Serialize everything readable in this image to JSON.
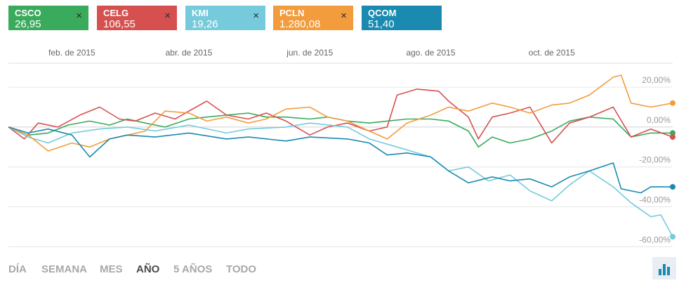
{
  "tickers": [
    {
      "symbol": "CSCO",
      "price": "26,95",
      "color": "#3aaa5c",
      "closable": true
    },
    {
      "symbol": "CELG",
      "price": "106,55",
      "color": "#d65050",
      "closable": true
    },
    {
      "symbol": "KMI",
      "price": "19,26",
      "color": "#75cbdc",
      "closable": true
    },
    {
      "symbol": "PCLN",
      "price": "1.280,08",
      "color": "#f39c3d",
      "closable": true
    },
    {
      "symbol": "QCOM",
      "price": "51,40",
      "color": "#1a8ab0",
      "closable": false
    }
  ],
  "time_tabs": [
    "DÍA",
    "SEMANA",
    "MES",
    "AÑO",
    "5 AÑOS",
    "TODO"
  ],
  "active_tab": "AÑO",
  "close_glyph": "×",
  "chart_toggle_icon": "bar-chart-icon",
  "chart_data": {
    "type": "line",
    "x_ticks": [
      "feb. de 2015",
      "abr. de 2015",
      "jun. de 2015",
      "ago. de 2015",
      "oct. de 2015"
    ],
    "y_ticks": [
      "20,00%",
      "0,00%",
      "-20,00%",
      "-40,00%",
      "-60,00%"
    ],
    "ylim": [
      -62,
      32
    ],
    "x_range": [
      "2014-12-31",
      "2015-12-01"
    ],
    "series": [
      {
        "name": "CSCO",
        "color": "#3aaa5c",
        "points": [
          [
            "2014-12-31",
            0
          ],
          [
            "2015-01-10",
            -4
          ],
          [
            "2015-01-20",
            -3
          ],
          [
            "2015-01-30",
            1
          ],
          [
            "2015-02-10",
            3
          ],
          [
            "2015-02-20",
            1
          ],
          [
            "2015-03-01",
            4
          ],
          [
            "2015-03-10",
            2
          ],
          [
            "2015-03-20",
            0
          ],
          [
            "2015-04-01",
            4
          ],
          [
            "2015-04-10",
            5
          ],
          [
            "2015-04-20",
            6
          ],
          [
            "2015-05-01",
            7
          ],
          [
            "2015-05-10",
            5
          ],
          [
            "2015-05-20",
            5
          ],
          [
            "2015-06-01",
            4
          ],
          [
            "2015-06-10",
            5
          ],
          [
            "2015-06-20",
            3
          ],
          [
            "2015-07-01",
            2
          ],
          [
            "2015-07-10",
            3
          ],
          [
            "2015-07-20",
            4
          ],
          [
            "2015-08-01",
            4
          ],
          [
            "2015-08-10",
            3
          ],
          [
            "2015-08-20",
            -2
          ],
          [
            "2015-08-25",
            -10
          ],
          [
            "2015-09-01",
            -5
          ],
          [
            "2015-09-10",
            -8
          ],
          [
            "2015-09-20",
            -6
          ],
          [
            "2015-10-01",
            -2
          ],
          [
            "2015-10-10",
            3
          ],
          [
            "2015-10-20",
            5
          ],
          [
            "2015-11-01",
            4
          ],
          [
            "2015-11-10",
            -5
          ],
          [
            "2015-11-20",
            -3
          ],
          [
            "2015-12-01",
            -3
          ]
        ]
      },
      {
        "name": "CELG",
        "color": "#d65050",
        "points": [
          [
            "2014-12-31",
            0
          ],
          [
            "2015-01-08",
            -6
          ],
          [
            "2015-01-15",
            2
          ],
          [
            "2015-01-25",
            0
          ],
          [
            "2015-02-05",
            6
          ],
          [
            "2015-02-15",
            10
          ],
          [
            "2015-02-25",
            4
          ],
          [
            "2015-03-05",
            3
          ],
          [
            "2015-03-15",
            7
          ],
          [
            "2015-03-25",
            4
          ],
          [
            "2015-04-01",
            8
          ],
          [
            "2015-04-10",
            13
          ],
          [
            "2015-04-20",
            6
          ],
          [
            "2015-05-01",
            4
          ],
          [
            "2015-05-10",
            7
          ],
          [
            "2015-05-20",
            3
          ],
          [
            "2015-06-01",
            -4
          ],
          [
            "2015-06-10",
            0
          ],
          [
            "2015-06-20",
            2
          ],
          [
            "2015-07-01",
            -2
          ],
          [
            "2015-07-10",
            0
          ],
          [
            "2015-07-15",
            16
          ],
          [
            "2015-07-25",
            19
          ],
          [
            "2015-08-05",
            18
          ],
          [
            "2015-08-10",
            13
          ],
          [
            "2015-08-20",
            5
          ],
          [
            "2015-08-25",
            -6
          ],
          [
            "2015-09-01",
            5
          ],
          [
            "2015-09-10",
            7
          ],
          [
            "2015-09-20",
            10
          ],
          [
            "2015-10-01",
            -8
          ],
          [
            "2015-10-10",
            2
          ],
          [
            "2015-10-20",
            5
          ],
          [
            "2015-11-01",
            10
          ],
          [
            "2015-11-10",
            -5
          ],
          [
            "2015-11-20",
            -1
          ],
          [
            "2015-12-01",
            -5
          ]
        ]
      },
      {
        "name": "KMI",
        "color": "#75cbdc",
        "points": [
          [
            "2014-12-31",
            0
          ],
          [
            "2015-01-10",
            -5
          ],
          [
            "2015-01-20",
            -8
          ],
          [
            "2015-02-01",
            -3
          ],
          [
            "2015-02-15",
            -1
          ],
          [
            "2015-03-01",
            0
          ],
          [
            "2015-03-15",
            -2
          ],
          [
            "2015-04-01",
            1
          ],
          [
            "2015-04-20",
            -3
          ],
          [
            "2015-05-01",
            -1
          ],
          [
            "2015-05-20",
            0
          ],
          [
            "2015-06-01",
            2
          ],
          [
            "2015-06-20",
            0
          ],
          [
            "2015-07-01",
            -6
          ],
          [
            "2015-07-15",
            -10
          ],
          [
            "2015-08-01",
            -15
          ],
          [
            "2015-08-10",
            -22
          ],
          [
            "2015-08-20",
            -20
          ],
          [
            "2015-08-30",
            -27
          ],
          [
            "2015-09-10",
            -24
          ],
          [
            "2015-09-20",
            -32
          ],
          [
            "2015-10-01",
            -37
          ],
          [
            "2015-10-10",
            -29
          ],
          [
            "2015-10-20",
            -22
          ],
          [
            "2015-11-01",
            -30
          ],
          [
            "2015-11-10",
            -38
          ],
          [
            "2015-11-20",
            -45
          ],
          [
            "2015-11-25",
            -44
          ],
          [
            "2015-12-01",
            -55
          ]
        ]
      },
      {
        "name": "PCLN",
        "color": "#f39c3d",
        "points": [
          [
            "2014-12-31",
            0
          ],
          [
            "2015-01-10",
            -4
          ],
          [
            "2015-01-20",
            -12
          ],
          [
            "2015-02-01",
            -8
          ],
          [
            "2015-02-10",
            -10
          ],
          [
            "2015-02-20",
            -6
          ],
          [
            "2015-03-01",
            -4
          ],
          [
            "2015-03-10",
            -2
          ],
          [
            "2015-03-20",
            8
          ],
          [
            "2015-04-01",
            7
          ],
          [
            "2015-04-10",
            3
          ],
          [
            "2015-04-20",
            5
          ],
          [
            "2015-05-01",
            2
          ],
          [
            "2015-05-10",
            4
          ],
          [
            "2015-05-20",
            9
          ],
          [
            "2015-06-01",
            10
          ],
          [
            "2015-06-10",
            5
          ],
          [
            "2015-06-20",
            3
          ],
          [
            "2015-07-01",
            -2
          ],
          [
            "2015-07-10",
            -6
          ],
          [
            "2015-07-20",
            2
          ],
          [
            "2015-08-01",
            6
          ],
          [
            "2015-08-10",
            10
          ],
          [
            "2015-08-20",
            8
          ],
          [
            "2015-09-01",
            12
          ],
          [
            "2015-09-10",
            10
          ],
          [
            "2015-09-20",
            7
          ],
          [
            "2015-10-01",
            11
          ],
          [
            "2015-10-10",
            12
          ],
          [
            "2015-10-20",
            16
          ],
          [
            "2015-11-01",
            25
          ],
          [
            "2015-11-05",
            26
          ],
          [
            "2015-11-10",
            12
          ],
          [
            "2015-11-20",
            10
          ],
          [
            "2015-12-01",
            12
          ]
        ]
      },
      {
        "name": "QCOM",
        "color": "#1a8ab0",
        "points": [
          [
            "2014-12-31",
            0
          ],
          [
            "2015-01-10",
            -3
          ],
          [
            "2015-01-20",
            -1
          ],
          [
            "2015-02-01",
            -4
          ],
          [
            "2015-02-10",
            -15
          ],
          [
            "2015-02-20",
            -6
          ],
          [
            "2015-03-01",
            -4
          ],
          [
            "2015-03-15",
            -5
          ],
          [
            "2015-04-01",
            -3
          ],
          [
            "2015-04-20",
            -6
          ],
          [
            "2015-05-01",
            -5
          ],
          [
            "2015-05-20",
            -7
          ],
          [
            "2015-06-01",
            -5
          ],
          [
            "2015-06-20",
            -6
          ],
          [
            "2015-07-01",
            -8
          ],
          [
            "2015-07-10",
            -14
          ],
          [
            "2015-07-20",
            -13
          ],
          [
            "2015-08-01",
            -15
          ],
          [
            "2015-08-10",
            -22
          ],
          [
            "2015-08-20",
            -28
          ],
          [
            "2015-09-01",
            -25
          ],
          [
            "2015-09-10",
            -27
          ],
          [
            "2015-09-20",
            -26
          ],
          [
            "2015-10-01",
            -30
          ],
          [
            "2015-10-10",
            -25
          ],
          [
            "2015-10-20",
            -22
          ],
          [
            "2015-11-01",
            -18
          ],
          [
            "2015-11-05",
            -31
          ],
          [
            "2015-11-15",
            -33
          ],
          [
            "2015-11-20",
            -30
          ],
          [
            "2015-12-01",
            -30
          ]
        ]
      }
    ]
  }
}
